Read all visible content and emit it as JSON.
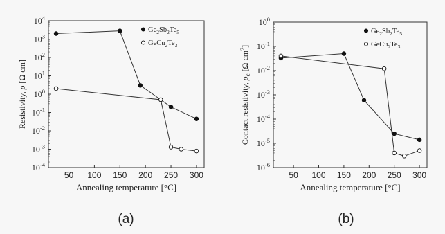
{
  "chart_data": [
    {
      "type": "scatter",
      "caption": "(a)",
      "xlabel": "Annealing temperature [°C]",
      "ylabel": "Resistivity, ρ [Ω cm]",
      "xlim": [
        10,
        315
      ],
      "ylim": [
        0.0001,
        10000
      ],
      "yscale": "log",
      "x_ticks": [
        50,
        100,
        150,
        200,
        250,
        300
      ],
      "y_ticks": [
        {
          "base": "10",
          "exp": "4",
          "value": 10000
        },
        {
          "base": "10",
          "exp": "3",
          "value": 1000
        },
        {
          "base": "10",
          "exp": "2",
          "value": 100
        },
        {
          "base": "10",
          "exp": "1",
          "value": 10
        },
        {
          "base": "10",
          "exp": "0",
          "value": 1
        },
        {
          "base": "10",
          "exp": "-1",
          "value": 0.1
        },
        {
          "base": "10",
          "exp": "-2",
          "value": 0.01
        },
        {
          "base": "10",
          "exp": "-3",
          "value": 0.001
        },
        {
          "base": "10",
          "exp": "-4",
          "value": 0.0001
        }
      ],
      "legend_position": "top-right",
      "series": [
        {
          "name": "Ge2Sb2Te5",
          "name_parts": [
            "Ge",
            "2",
            "Sb",
            "2",
            "Te",
            "5"
          ],
          "marker": "filled",
          "x": [
            25,
            150,
            190,
            230,
            250,
            300
          ],
          "y": [
            2000,
            2800,
            3,
            0.5,
            0.2,
            0.045
          ]
        },
        {
          "name": "GeCu2Te3",
          "name_parts": [
            "GeCu",
            "2",
            "Te",
            "3"
          ],
          "marker": "open",
          "x": [
            25,
            230,
            250,
            270,
            300
          ],
          "y": [
            2,
            0.5,
            0.0013,
            0.001,
            0.0008
          ]
        }
      ]
    },
    {
      "type": "scatter",
      "caption": "(b)",
      "xlabel": "Annealing temperature [°C]",
      "ylabel": "Contact resistivity, ρc [Ω cm²]",
      "xlim": [
        10,
        315
      ],
      "ylim": [
        1e-06,
        1
      ],
      "yscale": "log",
      "x_ticks": [
        50,
        100,
        150,
        200,
        250,
        300
      ],
      "y_ticks": [
        {
          "base": "10",
          "exp": "0",
          "value": 1
        },
        {
          "base": "10",
          "exp": "-1",
          "value": 0.1
        },
        {
          "base": "10",
          "exp": "-2",
          "value": 0.01
        },
        {
          "base": "10",
          "exp": "-3",
          "value": 0.001
        },
        {
          "base": "10",
          "exp": "-4",
          "value": 0.0001
        },
        {
          "base": "10",
          "exp": "-5",
          "value": 1e-05
        },
        {
          "base": "10",
          "exp": "-6",
          "value": 1e-06
        }
      ],
      "legend_position": "top-right",
      "series": [
        {
          "name": "Ge2Sb2Te5",
          "name_parts": [
            "Ge",
            "2",
            "Sb",
            "2",
            "Te",
            "5"
          ],
          "marker": "filled",
          "x": [
            25,
            150,
            190,
            250,
            300
          ],
          "y": [
            0.033,
            0.05,
            0.0006,
            2.5e-05,
            1.4e-05
          ]
        },
        {
          "name": "GeCu2Te3",
          "name_parts": [
            "GeCu",
            "2",
            "Te",
            "3"
          ],
          "marker": "open",
          "x": [
            25,
            230,
            250,
            270,
            300
          ],
          "y": [
            0.04,
            0.012,
            4e-06,
            3e-06,
            5e-06
          ]
        }
      ]
    }
  ]
}
